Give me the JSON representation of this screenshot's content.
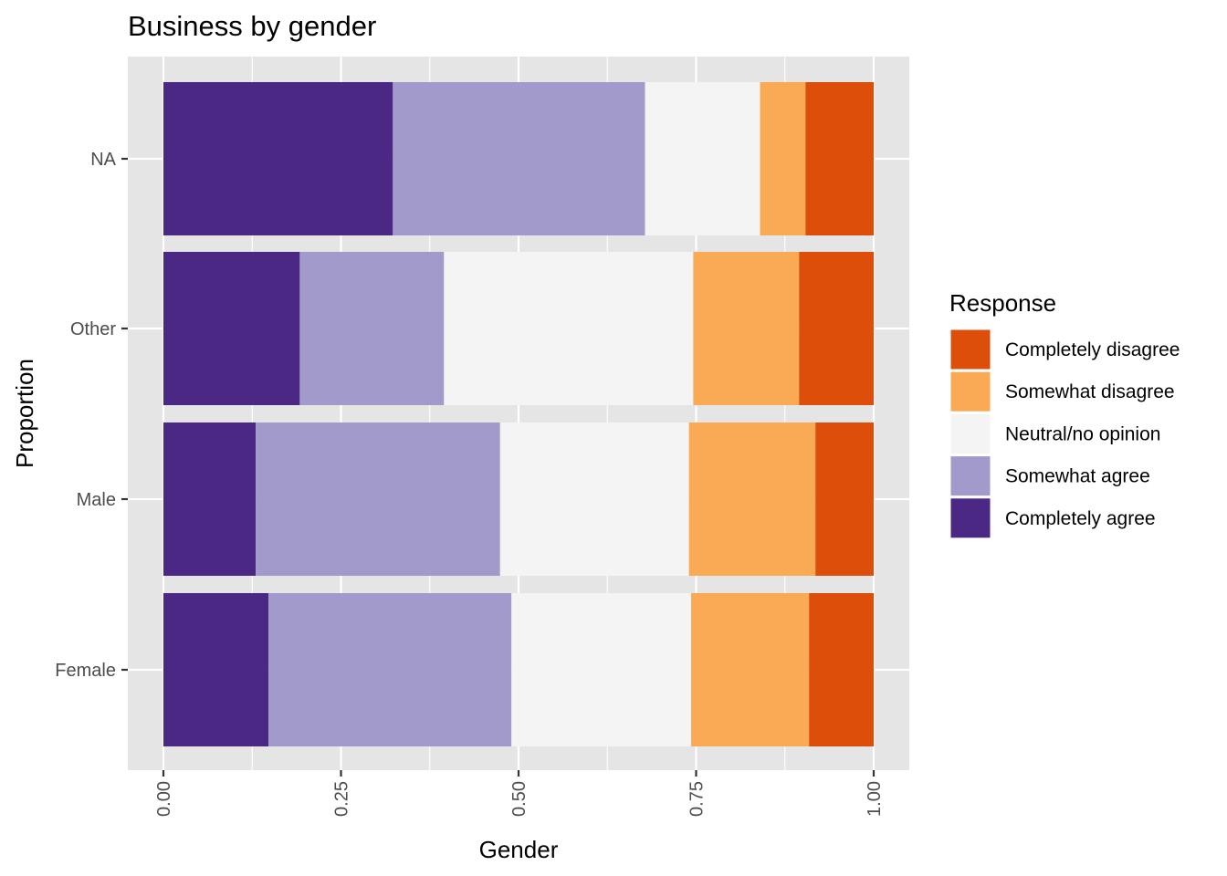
{
  "chart_data": {
    "type": "bar",
    "orientation": "horizontal",
    "stacked": true,
    "title": "Business by gender",
    "xlabel": "Gender",
    "ylabel": "Proportion",
    "xlim": [
      0,
      1
    ],
    "x_ticks": [
      "0.00",
      "0.25",
      "0.50",
      "0.75",
      "1.00"
    ],
    "categories": [
      "Female",
      "Male",
      "Other",
      "NA"
    ],
    "series": [
      {
        "name": "Completely agree",
        "color": "#4B2884",
        "values": [
          0.148,
          0.13,
          0.192,
          0.323
        ]
      },
      {
        "name": "Somewhat agree",
        "color": "#A29ACB",
        "values": [
          0.342,
          0.344,
          0.203,
          0.355
        ]
      },
      {
        "name": "Neutral/no opinion",
        "color": "#F4F4F4",
        "values": [
          0.253,
          0.266,
          0.351,
          0.162
        ]
      },
      {
        "name": "Somewhat disagree",
        "color": "#FAAA54",
        "values": [
          0.166,
          0.178,
          0.149,
          0.064
        ]
      },
      {
        "name": "Completely disagree",
        "color": "#DC4E09",
        "values": [
          0.091,
          0.082,
          0.105,
          0.096
        ]
      }
    ],
    "legend": {
      "title": "Response",
      "position": "right",
      "items": [
        "Completely disagree",
        "Somewhat disagree",
        "Neutral/no opinion",
        "Somewhat agree",
        "Completely agree"
      ]
    },
    "grid": true,
    "panel_color": "#E5E5E5",
    "grid_color": "#FFFFFF"
  }
}
